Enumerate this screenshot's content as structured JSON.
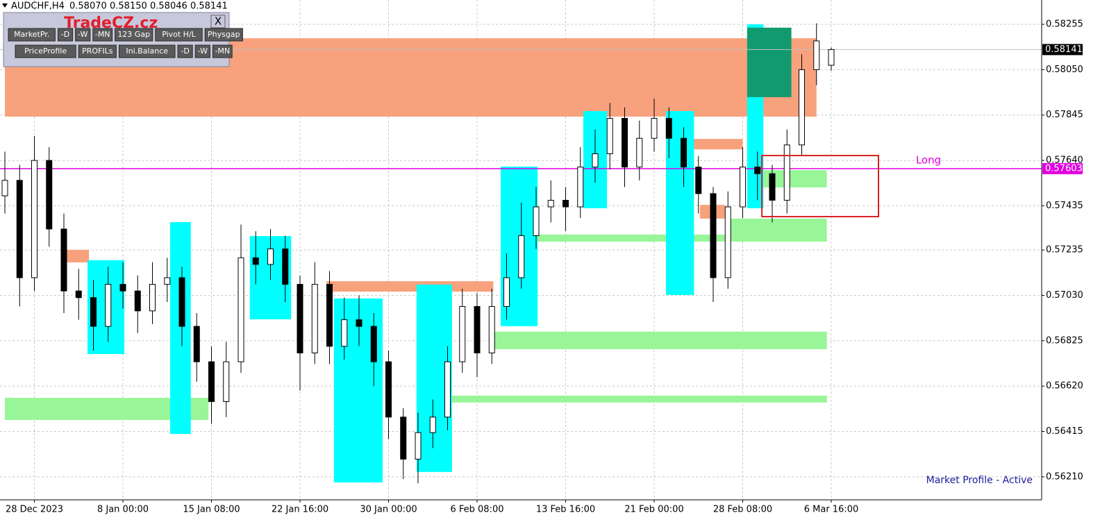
{
  "header": {
    "symbol": "AUDCHF,H4",
    "open": "0.58070",
    "high": "0.58150",
    "low": "0.58046",
    "close": "0.58141"
  },
  "panel": {
    "title": "TradeCZ.cz",
    "close": "X",
    "buttons": [
      [
        "MarketPr.",
        "-D",
        "-W",
        "-MN",
        "123 Gap",
        "Pivot H/L",
        "Physgap"
      ],
      [
        "PriceProfile",
        "PROFILs",
        "Ini.Balance",
        "-D",
        "-W",
        "-MN"
      ]
    ]
  },
  "chart_data": {
    "type": "candlestick",
    "open": [
      0.5748,
      0.5755,
      0.5711,
      0.5764,
      0.5733,
      0.5705,
      0.5702,
      0.5689,
      0.5708,
      0.5705,
      0.5696,
      0.5708,
      0.5711,
      0.5689,
      0.5673,
      0.5655,
      0.5673,
      0.572,
      0.5717,
      0.5724,
      0.5708,
      0.5677,
      0.5708,
      0.568,
      0.5692,
      0.5689,
      0.5673,
      0.5648,
      0.5629,
      0.5641,
      0.5648,
      0.5673,
      0.5698,
      0.5677,
      0.5698,
      0.5711,
      0.573,
      0.5743,
      0.5746,
      0.5743,
      0.5761,
      0.5767,
      0.5783,
      0.5761,
      0.5774,
      0.5783,
      0.5774,
      0.5761,
      0.5749,
      0.5711,
      0.5743,
      0.5761,
      0.5758,
      0.5746,
      0.5771,
      0.5805,
      0.5807
    ],
    "high": [
      0.5768,
      0.5762,
      0.5775,
      0.577,
      0.574,
      0.5715,
      0.571,
      0.5716,
      0.5718,
      0.5712,
      0.5718,
      0.572,
      0.5716,
      0.5695,
      0.568,
      0.5682,
      0.5735,
      0.5732,
      0.5733,
      0.573,
      0.5712,
      0.5718,
      0.5714,
      0.5702,
      0.5703,
      0.5695,
      0.5678,
      0.5652,
      0.565,
      0.5656,
      0.568,
      0.5706,
      0.5704,
      0.5706,
      0.5722,
      0.5745,
      0.5752,
      0.5755,
      0.5752,
      0.577,
      0.5778,
      0.579,
      0.5788,
      0.5782,
      0.5792,
      0.5788,
      0.5779,
      0.5766,
      0.5752,
      0.575,
      0.577,
      0.5768,
      0.5762,
      0.5778,
      0.5812,
      0.5826,
      0.5815
    ],
    "low": [
      0.574,
      0.5698,
      0.5705,
      0.5725,
      0.5695,
      0.5692,
      0.5678,
      0.5682,
      0.5697,
      0.5686,
      0.569,
      0.57,
      0.568,
      0.5664,
      0.5645,
      0.5648,
      0.5668,
      0.5708,
      0.571,
      0.57,
      0.566,
      0.5672,
      0.5672,
      0.5674,
      0.568,
      0.5662,
      0.5638,
      0.562,
      0.5618,
      0.5634,
      0.5642,
      0.5668,
      0.5666,
      0.5672,
      0.5692,
      0.5706,
      0.5724,
      0.5736,
      0.5732,
      0.5738,
      0.5754,
      0.576,
      0.5752,
      0.5755,
      0.5768,
      0.5765,
      0.5752,
      0.574,
      0.57,
      0.5706,
      0.5738,
      0.5746,
      0.5736,
      0.574,
      0.5766,
      0.5798,
      0.58046
    ],
    "close": [
      0.5755,
      0.5711,
      0.5764,
      0.5733,
      0.5705,
      0.5702,
      0.5689,
      0.5708,
      0.5705,
      0.5696,
      0.5708,
      0.5711,
      0.5689,
      0.5673,
      0.5655,
      0.5673,
      0.572,
      0.5717,
      0.5724,
      0.5708,
      0.5677,
      0.5708,
      0.568,
      0.5692,
      0.5689,
      0.5673,
      0.5648,
      0.5629,
      0.5641,
      0.5648,
      0.5673,
      0.5698,
      0.5677,
      0.5698,
      0.5711,
      0.573,
      0.5743,
      0.5746,
      0.5743,
      0.5761,
      0.5767,
      0.5783,
      0.5761,
      0.5774,
      0.5783,
      0.5774,
      0.5761,
      0.5749,
      0.5711,
      0.5743,
      0.5761,
      0.5758,
      0.5746,
      0.5771,
      0.5805,
      0.5818,
      0.58141
    ],
    "x_labels": [
      "28 Dec 2023",
      "8 Jan 00:00",
      "15 Jan 08:00",
      "22 Jan 16:00",
      "30 Jan 00:00",
      "6 Feb 08:00",
      "13 Feb 16:00",
      "21 Feb 00:00",
      "28 Feb 08:00",
      "6 Mar 16:00"
    ],
    "ylim": [
      0.56106,
      0.58365
    ],
    "yticks": [
      0.58255,
      {
        "value": 0.5805,
        "label": "0.58050"
      },
      0.57845,
      {
        "value": 0.5764,
        "label": "0.57640"
      },
      0.57435,
      0.57235,
      {
        "value": 0.5703,
        "label": "0.57030"
      },
      0.56825,
      {
        "value": 0.5662,
        "label": "0.56620"
      },
      0.56415,
      {
        "value": 0.5621,
        "label": "0.56210"
      }
    ],
    "grid": true,
    "zones": [
      {
        "from": 0,
        "to": 55,
        "high": 0.58192,
        "low": 0.57838,
        "color": "#f7a27c"
      },
      {
        "from": 0,
        "to": 13.8,
        "high": 0.56567,
        "low": 0.56467,
        "color": "#98f598"
      },
      {
        "from": 32.8,
        "to": 55.7,
        "high": 0.56866,
        "low": 0.56787,
        "color": "#98f598"
      },
      {
        "from": 29.3,
        "to": 55.7,
        "high": 0.56577,
        "low": 0.56546,
        "color": "#98f598"
      },
      {
        "from": 35.9,
        "to": 55.7,
        "high": 0.57305,
        "low": 0.57273,
        "color": "#98f598"
      },
      {
        "from": 51.4,
        "to": 55.7,
        "high": 0.57596,
        "low": 0.57518,
        "color": "#98f598"
      },
      {
        "from": 48.8,
        "to": 55.7,
        "high": 0.57377,
        "low": 0.57273,
        "color": "#98f598"
      },
      {
        "from": 21.8,
        "to": 33.1,
        "high": 0.57094,
        "low": 0.57047,
        "color": "#f7a27c"
      },
      {
        "from": 46,
        "to": 50,
        "high": 0.57737,
        "low": 0.5769,
        "color": "#f7a27c"
      },
      {
        "from": 47.1,
        "to": 48.8,
        "high": 0.57439,
        "low": 0.57377,
        "color": "#f7a27c"
      },
      {
        "from": 3.9,
        "to": 5.7,
        "high": 0.57236,
        "low": 0.57179,
        "color": "#f7a27c"
      },
      {
        "from": 11.2,
        "to": 12.6,
        "high": 0.57361,
        "low": 0.56404,
        "color": "#00ffff"
      },
      {
        "from": 22.3,
        "to": 25.6,
        "high": 0.57016,
        "low": 0.56185,
        "color": "#00ffff"
      },
      {
        "from": 27.9,
        "to": 30.3,
        "high": 0.57079,
        "low": 0.56232,
        "color": "#00ffff"
      },
      {
        "from": 33.6,
        "to": 36.1,
        "high": 0.57612,
        "low": 0.56891,
        "color": "#00ffff"
      },
      {
        "from": 39.2,
        "to": 40.8,
        "high": 0.57863,
        "low": 0.57424,
        "color": "#00ffff"
      },
      {
        "from": 44.8,
        "to": 46.7,
        "high": 0.57863,
        "low": 0.57032,
        "color": "#00ffff"
      },
      {
        "from": 50.3,
        "to": 51.4,
        "high": 0.58255,
        "low": 0.57424,
        "color": "#00ffff"
      },
      {
        "from": 5.6,
        "to": 8.1,
        "high": 0.57189,
        "low": 0.56765,
        "color": "#00ffff"
      },
      {
        "from": 16.6,
        "to": 19.4,
        "high": 0.57298,
        "low": 0.56922,
        "color": "#00ffff"
      },
      {
        "from": 50.3,
        "to": 53.3,
        "high": 0.5824,
        "low": 0.57926,
        "color": "#129a6f"
      }
    ],
    "levels": [
      {
        "name": "Long",
        "value": 0.57603,
        "color": "#e000e0"
      },
      {
        "value": 0.58141,
        "color": "#c0c0c0"
      }
    ],
    "box": {
      "from": 51.3,
      "to": 59.2,
      "high": 0.57662,
      "low": 0.57386,
      "color": "#d62020"
    },
    "status": "Market Profile - Active"
  }
}
